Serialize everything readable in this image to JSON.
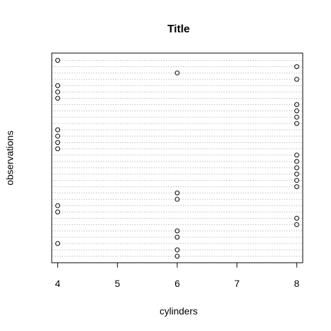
{
  "chart_data": {
    "type": "scatter",
    "title": "Title",
    "xlabel": "cylinders",
    "ylabel": "observations",
    "xlim": [
      3.9,
      8.1
    ],
    "x_ticks": [
      "4",
      "5",
      "6",
      "7",
      "8"
    ],
    "grid": true,
    "grid_style": "dotted horizontal lines, one per observation",
    "colors": {
      "axis": "#000000",
      "grid": "#bebebe",
      "point": "#000000"
    },
    "series": [
      {
        "x": [
          4,
          8,
          6,
          8,
          4,
          4,
          4,
          8,
          8,
          8,
          8,
          4,
          4,
          4,
          4,
          8,
          8,
          8,
          8,
          8,
          8,
          6,
          6,
          4,
          4,
          8,
          8,
          6,
          6,
          4,
          6,
          6
        ]
      }
    ]
  }
}
